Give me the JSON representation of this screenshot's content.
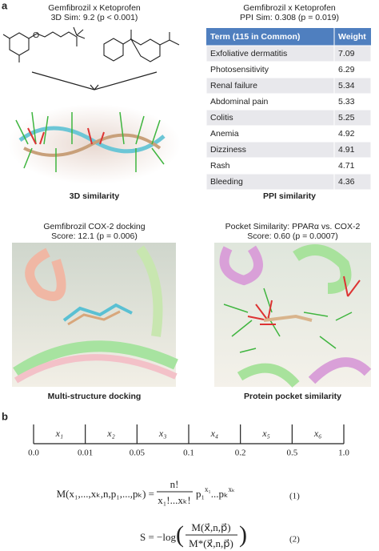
{
  "panel_a": {
    "label": "a",
    "top_left": {
      "title": "Gemfibrozil x Ketoprofen",
      "subtitle": "3D Sim: 9.2 (p < 0.001)",
      "caption": "3D similarity"
    },
    "top_right": {
      "title": "Gemfibrozil x Ketoprofen",
      "subtitle": "PPI Sim: 0.308 (p = 0.019)",
      "caption": "PPI similarity",
      "table": {
        "header": [
          "Term (115 in Common)",
          "Weight"
        ],
        "rows": [
          [
            "Exfoliative dermatitis",
            "7.09"
          ],
          [
            "Photosensitivity",
            "6.29"
          ],
          [
            "Renal failure",
            "5.34"
          ],
          [
            "Abdominal pain",
            "5.33"
          ],
          [
            "Colitis",
            "5.25"
          ],
          [
            "Anemia",
            "4.92"
          ],
          [
            "Dizziness",
            "4.91"
          ],
          [
            "Rash",
            "4.71"
          ],
          [
            "Bleeding",
            "4.36"
          ]
        ]
      }
    },
    "bottom_left": {
      "title": "Gemfibrozil COX-2 docking",
      "subtitle": "Score: 12.1 (p = 0.006)",
      "caption": "Multi-structure docking"
    },
    "bottom_right": {
      "title": "Pocket Similarity: PPARα vs. COX-2",
      "subtitle": "Score: 0.60 (p = 0.0007)",
      "caption": "Protein pocket similarity"
    }
  },
  "panel_b": {
    "label": "b",
    "bins": [
      "x₁",
      "x₂",
      "x₃",
      "x₄",
      "x₅",
      "x₆"
    ],
    "edges": [
      "0.0",
      "0.01",
      "0.05",
      "0.1",
      "0.2",
      "0.5",
      "1.0"
    ],
    "equation_1": {
      "lhs": "M(x₁,...,xₖ,n,p₁,...,pₖ) =",
      "numerator": "n!",
      "denominator": "x₁!...xₖ!",
      "p1": "p₁",
      "x1": "x₁",
      "pk": "...pₖ",
      "xk": "xₖ",
      "number": "(1)"
    },
    "equation_2": {
      "lhs": "S = −log",
      "open": "(",
      "numerator": "M(x⃗,n,p⃗)",
      "denominator": "M*(x⃗,n,p⃗)",
      "close": ")",
      "number": "(2)"
    }
  }
}
